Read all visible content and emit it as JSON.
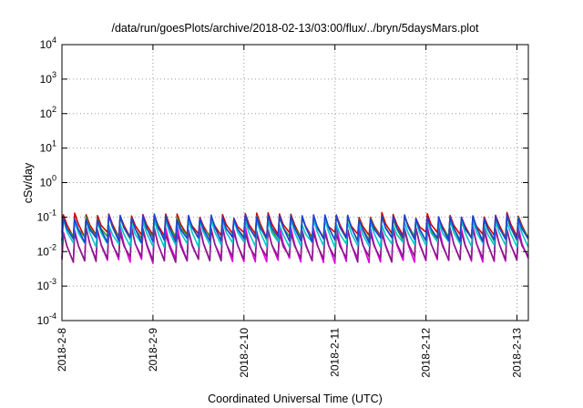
{
  "chart_data": {
    "type": "line",
    "title": "/data/run/goesPlots/archive/2018-02-13/03:00/flux/../bryn/5daysMars.plot",
    "xlabel": "Coordinated Universal Time (UTC)",
    "ylabel": "cSv/day",
    "x_scale": "date",
    "y_scale": "log",
    "xlim": [
      "2018-02-08T00:00",
      "2018-02-13T03:00"
    ],
    "ylim": [
      0.0001,
      10000
    ],
    "x_ticks": [
      "2018-2-8",
      "2018-2-9",
      "2018-2-10",
      "2018-2-11",
      "2018-2-12",
      "2018-2-13"
    ],
    "y_ticks": [
      {
        "base": "10",
        "exp": "-4"
      },
      {
        "base": "10",
        "exp": "-3"
      },
      {
        "base": "10",
        "exp": "-2"
      },
      {
        "base": "10",
        "exp": "-1"
      },
      {
        "base": "10",
        "exp": "0"
      },
      {
        "base": "10",
        "exp": "1"
      },
      {
        "base": "10",
        "exp": "2"
      },
      {
        "base": "10",
        "exp": "3"
      },
      {
        "base": "10",
        "exp": "4"
      }
    ],
    "grid": true,
    "legend": "none",
    "series": [
      {
        "color": "#d40000",
        "peak": 0.11,
        "trough": 0.03
      },
      {
        "color": "#2a9a2a",
        "peak": 0.09,
        "trough": 0.024
      },
      {
        "color": "#00c8c8",
        "peak": 0.07,
        "trough": 0.016
      },
      {
        "color": "#2040d8",
        "peak": 0.1,
        "trough": 0.022
      },
      {
        "color": "#e000e0",
        "peak": 0.045,
        "trough": 0.0055
      },
      {
        "color": "#8a1a8a",
        "peak": 0.04,
        "trough": 0.006
      }
    ]
  }
}
